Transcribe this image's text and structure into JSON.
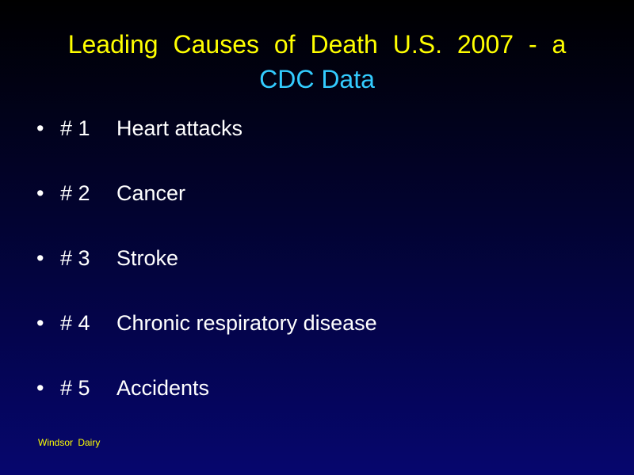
{
  "title": {
    "line1": "Leading Causes of Death U.S. 2007 - a",
    "line2": "CDC Data"
  },
  "bullet_symbol": "•",
  "bullets": [
    {
      "number": "# 1",
      "text": "Heart attacks"
    },
    {
      "number": "# 2",
      "text": "Cancer"
    },
    {
      "number": "# 3",
      "text": "Stroke"
    },
    {
      "number": "# 4",
      "text": "Chronic respiratory disease"
    },
    {
      "number": "# 5",
      "text": "Accidents"
    }
  ],
  "footer": "Windsor Dairy",
  "colors": {
    "title_primary": "#ffff00",
    "title_secondary": "#33ccff",
    "body_text": "#ffffff",
    "footer_text": "#ffff00",
    "background_top": "#000000",
    "background_bottom": "#06066e"
  }
}
